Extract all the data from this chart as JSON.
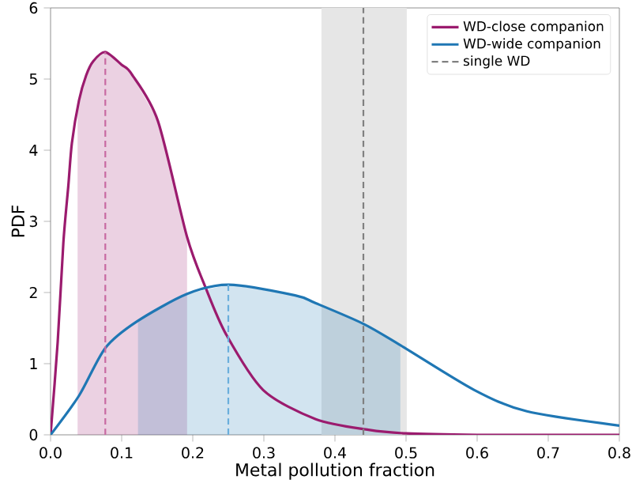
{
  "chart_data": {
    "type": "line",
    "xlabel": "Metal pollution fraction",
    "ylabel": "PDF",
    "xlim": [
      0,
      0.8
    ],
    "ylim": [
      0,
      6
    ],
    "xticks": [
      {
        "value": 0,
        "label": "0.0"
      },
      0.1,
      0.2,
      0.3,
      0.4,
      0.5,
      0.6,
      0.7,
      0.8
    ],
    "yticks": [
      0,
      1,
      2,
      3,
      4,
      5,
      6
    ],
    "legend": "top right",
    "bands": [
      {
        "axis": "x",
        "from": 0.381,
        "to": 0.501,
        "color": "#e6e6e6"
      }
    ],
    "series": [
      {
        "name": "WD-close companion",
        "color": "#9b1b6e",
        "x": [
          0,
          0.01,
          0.018,
          0.025,
          0.03,
          0.04,
          0.05,
          0.06,
          0.077,
          0.1,
          0.114,
          0.151,
          0.192,
          0.218,
          0.247,
          0.299,
          0.373,
          0.447,
          0.5,
          0.6,
          0.7,
          0.8
        ],
        "values": [
          0,
          1.3,
          2.7,
          3.5,
          4.1,
          4.7,
          5.05,
          5.25,
          5.38,
          5.2,
          5.07,
          4.41,
          2.78,
          2.07,
          1.41,
          0.63,
          0.22,
          0.07,
          0.02,
          0,
          0,
          0
        ]
      },
      {
        "name": "WD-wide companion",
        "color": "#1f77b4",
        "x": [
          0,
          0.04,
          0.077,
          0.121,
          0.192,
          0.251,
          0.344,
          0.373,
          0.44,
          0.492,
          0.596,
          0.67,
          0.8
        ],
        "values": [
          0,
          0.55,
          1.22,
          1.59,
          1.98,
          2.11,
          1.96,
          1.85,
          1.56,
          1.26,
          0.63,
          0.33,
          0.13
        ]
      },
      {
        "name": "single WD",
        "line_style": "dashed",
        "color": "#808080",
        "x": [
          0.44,
          0.44
        ],
        "values": [
          0,
          6
        ]
      },
      {
        "type": "area",
        "color": "#9b1b6e",
        "x": [
          0.038,
          0.05,
          0.06,
          0.077,
          0.1,
          0.114,
          0.151,
          0.192
        ],
        "values": [
          4.65,
          5.05,
          5.25,
          5.38,
          5.2,
          5.07,
          4.41,
          2.78
        ]
      },
      {
        "type": "area",
        "color": "#1f77b4",
        "x": [
          0.123,
          0.192,
          0.251,
          0.344,
          0.373,
          0.44,
          0.492
        ],
        "values": [
          1.6,
          1.98,
          2.11,
          1.96,
          1.85,
          1.56,
          1.26
        ]
      },
      {
        "line_style": "dashed",
        "color": "#c86aa2",
        "x": [
          0.077,
          0.077
        ],
        "values": [
          0,
          5.38
        ]
      },
      {
        "line_style": "dashed",
        "color": "#6aaedc",
        "x": [
          0.25,
          0.25
        ],
        "values": [
          0,
          2.11
        ]
      }
    ]
  }
}
